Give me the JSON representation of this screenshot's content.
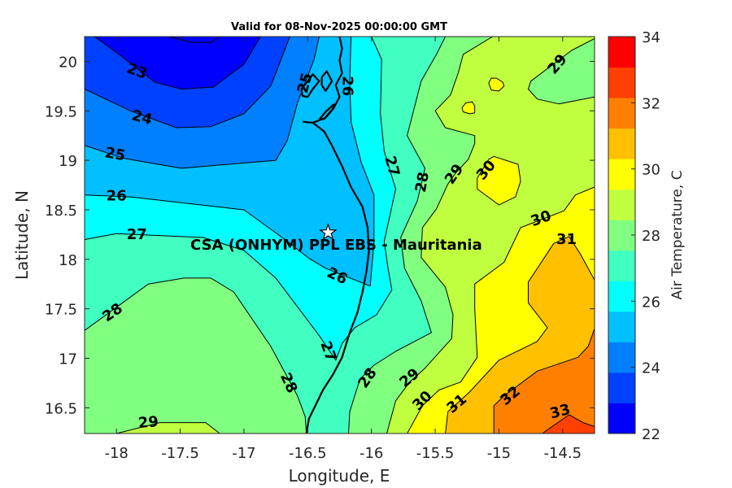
{
  "chart_data": {
    "type": "contourf",
    "title": "Valid for 08-Nov-2025 00:00:00 GMT",
    "xlabel": "Longitude, E",
    "ylabel": "Latitude, N",
    "xlim": [
      -18.25,
      -14.25
    ],
    "ylim": [
      16.24,
      20.25
    ],
    "xticks": [
      "-18",
      "-17.5",
      "-17",
      "-16.5",
      "-16",
      "-15.5",
      "-15",
      "-14.5"
    ],
    "xtick_values": [
      -18,
      -17.5,
      -17,
      -16.5,
      -16,
      -15.5,
      -15,
      -14.5
    ],
    "yticks": [
      "16.5",
      "17",
      "17.5",
      "18",
      "18.5",
      "19",
      "19.5",
      "20"
    ],
    "ytick_values": [
      16.5,
      17,
      17.5,
      18,
      18.5,
      19,
      19.5,
      20
    ],
    "colorbar": {
      "label": "Air Temperature, C",
      "range": [
        22,
        34
      ],
      "ticks": [
        "22",
        "24",
        "26",
        "28",
        "30",
        "32",
        "34"
      ],
      "tick_values": [
        22,
        24,
        26,
        28,
        30,
        32,
        34
      ],
      "colors": [
        "#0000ff",
        "#0040ff",
        "#0080ff",
        "#00c0ff",
        "#00ffff",
        "#40ffc0",
        "#80ff80",
        "#c0ff40",
        "#ffff00",
        "#ffc000",
        "#ff8000",
        "#ff4000",
        "#ff0000"
      ]
    },
    "background_fill": "#40ffc0",
    "regions": [
      {
        "level": 27,
        "side": "below",
        "fill": "#00ffff",
        "polygon": [
          [
            -18.25,
            20.25
          ],
          [
            -18.25,
            18.2
          ],
          [
            -18.0,
            18.26
          ],
          [
            -17.32,
            18.22
          ],
          [
            -17.0,
            18.09
          ],
          [
            -16.75,
            17.81
          ],
          [
            -16.41,
            17.23
          ],
          [
            -16.28,
            16.98
          ],
          [
            -16.23,
            17.15
          ],
          [
            -16.13,
            17.31
          ],
          [
            -15.96,
            17.44
          ],
          [
            -15.84,
            17.69
          ],
          [
            -15.87,
            17.91
          ],
          [
            -15.9,
            18.18
          ],
          [
            -15.81,
            18.71
          ],
          [
            -15.9,
            19.09
          ],
          [
            -15.93,
            19.47
          ],
          [
            -15.92,
            20.02
          ],
          [
            -16.0,
            20.25
          ]
        ]
      },
      {
        "level": 26,
        "side": "below",
        "fill": "#00c0ff",
        "polygon": [
          [
            -18.25,
            20.25
          ],
          [
            -18.25,
            18.65
          ],
          [
            -17.89,
            18.63
          ],
          [
            -17.0,
            18.5
          ],
          [
            -16.7,
            18.22
          ],
          [
            -16.49,
            18.01
          ],
          [
            -16.36,
            17.91
          ],
          [
            -16.01,
            17.73
          ],
          [
            -15.98,
            18.16
          ],
          [
            -15.98,
            18.65
          ],
          [
            -16.08,
            18.98
          ],
          [
            -16.16,
            19.39
          ],
          [
            -16.17,
            19.8
          ],
          [
            -16.16,
            20.25
          ]
        ]
      },
      {
        "level": 25,
        "side": "below",
        "fill": "#0080ff",
        "polygon": [
          [
            -18.25,
            20.25
          ],
          [
            -18.25,
            19.15
          ],
          [
            -17.94,
            19.02
          ],
          [
            -17.49,
            18.92
          ],
          [
            -16.75,
            19.0
          ],
          [
            -16.66,
            19.2
          ],
          [
            -16.58,
            19.58
          ],
          [
            -16.45,
            20.02
          ],
          [
            -16.41,
            20.25
          ]
        ]
      },
      {
        "level": 24,
        "side": "below",
        "fill": "#0040ff",
        "polygon": [
          [
            -18.25,
            20.25
          ],
          [
            -18.25,
            19.72
          ],
          [
            -17.89,
            19.5
          ],
          [
            -17.53,
            19.33
          ],
          [
            -17.26,
            19.34
          ],
          [
            -17.0,
            19.47
          ],
          [
            -16.79,
            19.75
          ],
          [
            -16.64,
            20.25
          ]
        ]
      },
      {
        "level": 23,
        "side": "below",
        "fill": "#0000ff",
        "polygon": [
          [
            -18.17,
            20.25
          ],
          [
            -17.96,
            20.05
          ],
          [
            -17.7,
            19.79
          ],
          [
            -17.49,
            19.72
          ],
          [
            -17.24,
            19.74
          ],
          [
            -17.0,
            19.97
          ],
          [
            -16.87,
            20.25
          ]
        ]
      },
      {
        "level": 22,
        "side": "below",
        "fill": "#0000ff",
        "polygon": [
          [
            -17.59,
            20.25
          ],
          [
            -17.4,
            20.19
          ],
          [
            -17.26,
            20.19
          ],
          [
            -17.19,
            20.25
          ]
        ]
      },
      {
        "level": 28,
        "side": "above",
        "fill": "#80ff80",
        "polygon": [
          [
            -15.42,
            20.25
          ],
          [
            -15.49,
            20.07
          ],
          [
            -15.61,
            19.8
          ],
          [
            -15.72,
            19.25
          ],
          [
            -15.58,
            18.92
          ],
          [
            -15.64,
            18.59
          ],
          [
            -15.77,
            18.22
          ],
          [
            -15.74,
            17.91
          ],
          [
            -15.61,
            17.58
          ],
          [
            -15.53,
            17.26
          ],
          [
            -15.81,
            17.07
          ],
          [
            -15.98,
            16.93
          ],
          [
            -16.09,
            16.79
          ],
          [
            -16.17,
            16.46
          ],
          [
            -16.18,
            16.24
          ],
          [
            -14.25,
            16.24
          ],
          [
            -14.25,
            20.25
          ]
        ]
      },
      {
        "level": 28,
        "side": "above",
        "fill": "#80ff80",
        "polygon": [
          [
            -18.25,
            17.28
          ],
          [
            -17.75,
            17.75
          ],
          [
            -17.47,
            17.81
          ],
          [
            -17.26,
            17.81
          ],
          [
            -17.08,
            17.67
          ],
          [
            -16.79,
            17.12
          ],
          [
            -16.58,
            16.62
          ],
          [
            -16.52,
            16.41
          ],
          [
            -16.51,
            16.24
          ],
          [
            -18.25,
            16.24
          ]
        ]
      },
      {
        "level": 29,
        "side": "above",
        "fill": "#c0ff40",
        "polygon": [
          [
            -15.05,
            20.25
          ],
          [
            -15.28,
            20.07
          ],
          [
            -15.32,
            19.88
          ],
          [
            -15.38,
            19.66
          ],
          [
            -15.5,
            19.5
          ],
          [
            -15.42,
            19.33
          ],
          [
            -15.19,
            19.25
          ],
          [
            -15.19,
            19.17
          ],
          [
            -15.24,
            19.01
          ],
          [
            -15.34,
            18.87
          ],
          [
            -15.4,
            18.76
          ],
          [
            -15.49,
            18.51
          ],
          [
            -15.6,
            18.32
          ],
          [
            -15.61,
            18.02
          ],
          [
            -15.42,
            17.72
          ],
          [
            -15.36,
            17.44
          ],
          [
            -15.37,
            17.2
          ],
          [
            -15.58,
            16.9
          ],
          [
            -15.7,
            16.76
          ],
          [
            -15.81,
            16.57
          ],
          [
            -15.88,
            16.24
          ],
          [
            -14.25,
            16.24
          ],
          [
            -14.25,
            19.64
          ],
          [
            -14.53,
            19.57
          ],
          [
            -14.7,
            19.62
          ],
          [
            -14.77,
            19.72
          ],
          [
            -14.75,
            19.8
          ],
          [
            -14.43,
            20.11
          ],
          [
            -14.25,
            20.23
          ],
          [
            -14.25,
            20.25
          ]
        ]
      },
      {
        "level": 29,
        "side": "above",
        "fill": "#c0ff40",
        "polygon": [
          [
            -18.0,
            16.24
          ],
          [
            -17.66,
            16.35
          ],
          [
            -17.3,
            16.35
          ],
          [
            -17.19,
            16.24
          ]
        ]
      },
      {
        "level": 30,
        "side": "above",
        "fill": "#ffff00",
        "polygon": [
          [
            -15.08,
            19.78
          ],
          [
            -15.06,
            19.83
          ],
          [
            -15.02,
            19.83
          ],
          [
            -14.97,
            19.79
          ],
          [
            -14.96,
            19.75
          ],
          [
            -15.0,
            19.7
          ],
          [
            -15.06,
            19.71
          ]
        ]
      },
      {
        "level": 30,
        "side": "above",
        "fill": "#ffff00",
        "polygon": [
          [
            -15.29,
            19.53
          ],
          [
            -15.26,
            19.58
          ],
          [
            -15.21,
            19.59
          ],
          [
            -15.19,
            19.55
          ],
          [
            -15.19,
            19.48
          ],
          [
            -15.23,
            19.47
          ],
          [
            -15.28,
            19.49
          ]
        ]
      },
      {
        "level": 30,
        "side": "above",
        "fill": "#ffff00",
        "polygon": [
          [
            -15.08,
            19.01
          ],
          [
            -15.04,
            19.04
          ],
          [
            -14.85,
            18.96
          ],
          [
            -14.83,
            18.79
          ],
          [
            -14.87,
            18.63
          ],
          [
            -15.0,
            18.55
          ],
          [
            -15.17,
            18.71
          ],
          [
            -15.17,
            18.82
          ]
        ]
      },
      {
        "level": 30,
        "side": "above",
        "fill": "#ffff00",
        "polygon": [
          [
            -14.25,
            18.73
          ],
          [
            -14.4,
            18.65
          ],
          [
            -14.49,
            18.49
          ],
          [
            -14.83,
            18.32
          ],
          [
            -14.96,
            17.97
          ],
          [
            -15.19,
            17.75
          ],
          [
            -15.19,
            17.5
          ],
          [
            -15.17,
            17.01
          ],
          [
            -15.3,
            16.76
          ],
          [
            -15.47,
            16.68
          ],
          [
            -15.6,
            16.52
          ],
          [
            -15.72,
            16.24
          ],
          [
            -14.25,
            16.24
          ]
        ]
      },
      {
        "level": 31,
        "side": "above",
        "fill": "#ffc000",
        "polygon": [
          [
            -14.25,
            17.79
          ],
          [
            -14.36,
            18.05
          ],
          [
            -14.45,
            18.23
          ],
          [
            -14.57,
            18.16
          ],
          [
            -14.77,
            17.77
          ],
          [
            -14.77,
            17.56
          ],
          [
            -14.62,
            17.31
          ],
          [
            -14.7,
            17.17
          ],
          [
            -15.0,
            16.98
          ],
          [
            -15.23,
            16.66
          ],
          [
            -15.4,
            16.46
          ],
          [
            -15.42,
            16.24
          ],
          [
            -14.25,
            16.24
          ]
        ]
      },
      {
        "level": 32,
        "side": "above",
        "fill": "#ff8000",
        "polygon": [
          [
            -14.25,
            17.3
          ],
          [
            -14.3,
            17.12
          ],
          [
            -14.38,
            17.01
          ],
          [
            -14.7,
            16.87
          ],
          [
            -14.96,
            16.62
          ],
          [
            -15.04,
            16.52
          ],
          [
            -15.04,
            16.24
          ],
          [
            -14.25,
            16.24
          ]
        ]
      },
      {
        "level": 33,
        "side": "above",
        "fill": "#ff4000",
        "polygon": [
          [
            -14.66,
            16.24
          ],
          [
            -14.45,
            16.43
          ],
          [
            -14.34,
            16.35
          ],
          [
            -14.25,
            16.31
          ],
          [
            -14.25,
            16.24
          ]
        ]
      }
    ],
    "contour_labels": [
      {
        "text": "23",
        "lon": -17.84,
        "lat": 19.9
      },
      {
        "text": "24",
        "lon": -17.8,
        "lat": 19.43
      },
      {
        "text": "25",
        "lon": -18.01,
        "lat": 19.06
      },
      {
        "text": "26",
        "lon": -18.0,
        "lat": 18.64
      },
      {
        "text": "27",
        "lon": -17.84,
        "lat": 18.25
      },
      {
        "text": "28",
        "lon": -18.03,
        "lat": 17.46
      },
      {
        "text": "29",
        "lon": -17.75,
        "lat": 16.35
      },
      {
        "text": "25",
        "lon": -16.52,
        "lat": 19.78
      },
      {
        "text": "26",
        "lon": -16.19,
        "lat": 19.75
      },
      {
        "text": "27",
        "lon": -15.84,
        "lat": 18.94
      },
      {
        "text": "28",
        "lon": -15.6,
        "lat": 18.78
      },
      {
        "text": "29",
        "lon": -15.35,
        "lat": 18.86
      },
      {
        "text": "30",
        "lon": -15.1,
        "lat": 18.9
      },
      {
        "text": "29",
        "lon": -14.54,
        "lat": 19.97
      },
      {
        "text": "30",
        "lon": -14.67,
        "lat": 18.41
      },
      {
        "text": "31",
        "lon": -14.47,
        "lat": 18.2
      },
      {
        "text": "26",
        "lon": -16.27,
        "lat": 17.83
      },
      {
        "text": "27",
        "lon": -16.34,
        "lat": 17.07
      },
      {
        "text": "28",
        "lon": -16.65,
        "lat": 16.75
      },
      {
        "text": "28",
        "lon": -16.03,
        "lat": 16.8
      },
      {
        "text": "29",
        "lon": -15.7,
        "lat": 16.8
      },
      {
        "text": "30",
        "lon": -15.6,
        "lat": 16.57
      },
      {
        "text": "31",
        "lon": -15.33,
        "lat": 16.54
      },
      {
        "text": "32",
        "lon": -14.91,
        "lat": 16.62
      },
      {
        "text": "33",
        "lon": -14.52,
        "lat": 16.46
      }
    ],
    "coastlines": [
      [
        [
          -16.54,
          19.39
        ],
        [
          -16.46,
          19.38
        ],
        [
          -16.37,
          19.29
        ],
        [
          -16.31,
          19.15
        ],
        [
          -16.23,
          18.94
        ],
        [
          -16.16,
          18.73
        ],
        [
          -16.07,
          18.53
        ],
        [
          -16.03,
          18.32
        ],
        [
          -16.02,
          18.08
        ],
        [
          -16.04,
          17.87
        ],
        [
          -16.07,
          17.67
        ],
        [
          -16.11,
          17.46
        ],
        [
          -16.17,
          17.26
        ],
        [
          -16.23,
          17.01
        ],
        [
          -16.3,
          16.84
        ],
        [
          -16.38,
          16.68
        ],
        [
          -16.44,
          16.52
        ],
        [
          -16.49,
          16.39
        ],
        [
          -16.51,
          16.24
        ]
      ],
      [
        [
          -16.46,
          19.38
        ],
        [
          -16.36,
          19.43
        ],
        [
          -16.3,
          19.52
        ],
        [
          -16.25,
          19.64
        ],
        [
          -16.28,
          19.76
        ],
        [
          -16.23,
          19.88
        ],
        [
          -16.25,
          20.01
        ],
        [
          -16.23,
          20.13
        ],
        [
          -16.25,
          20.25
        ]
      ],
      [
        [
          -16.41,
          19.41
        ],
        [
          -16.36,
          19.49
        ],
        [
          -16.3,
          19.56
        ],
        [
          -16.28,
          19.57
        ],
        [
          -16.31,
          19.51
        ],
        [
          -16.37,
          19.42
        ],
        [
          -16.41,
          19.41
        ]
      ],
      [
        [
          -16.55,
          19.72
        ],
        [
          -16.5,
          19.8
        ],
        [
          -16.46,
          19.87
        ],
        [
          -16.41,
          19.8
        ],
        [
          -16.46,
          19.72
        ],
        [
          -16.5,
          19.64
        ],
        [
          -16.54,
          19.65
        ],
        [
          -16.55,
          19.72
        ]
      ],
      [
        [
          -16.39,
          19.84
        ],
        [
          -16.35,
          19.9
        ],
        [
          -16.31,
          19.8
        ],
        [
          -16.36,
          19.7
        ],
        [
          -16.39,
          19.76
        ],
        [
          -16.39,
          19.84
        ]
      ]
    ],
    "site": {
      "name": "CSA (ONHYM) PPL EBS  - Mauritania",
      "lon": -16.34,
      "lat": 18.27
    }
  }
}
